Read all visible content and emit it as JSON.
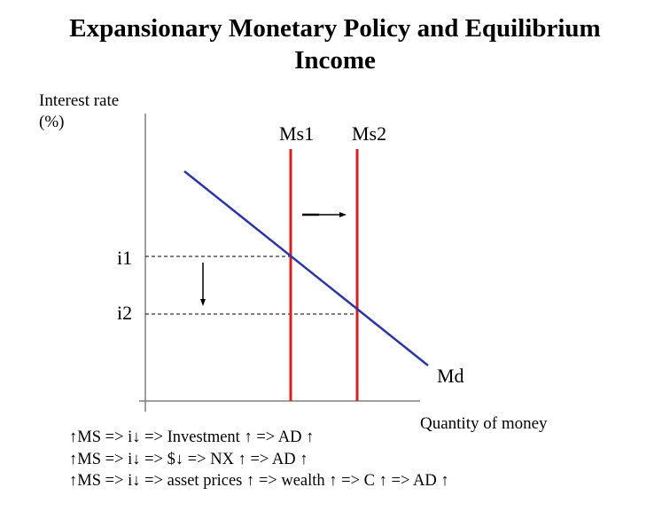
{
  "title": {
    "line1": "Expansionary Monetary Policy and Equilibrium",
    "line2": "Income"
  },
  "axes": {
    "y_label_line1": "Interest rate",
    "y_label_line2": "(%)",
    "x_label": "Quantity of money"
  },
  "curves": {
    "ms1": "Ms1",
    "ms2": "Ms2",
    "md": "Md"
  },
  "rates": {
    "i1": "i1",
    "i2": "i2"
  },
  "colors": {
    "money_supply": "#d42020",
    "money_demand": "#2b35a3"
  },
  "effects": [
    "↑MS => i↓ => Investment ↑ => AD ↑",
    "↑MS => i↓ => $↓ => NX ↑ => AD ↑",
    "↑MS => i↓ => asset prices ↑ => wealth ↑ => C ↑ => AD ↑"
  ]
}
